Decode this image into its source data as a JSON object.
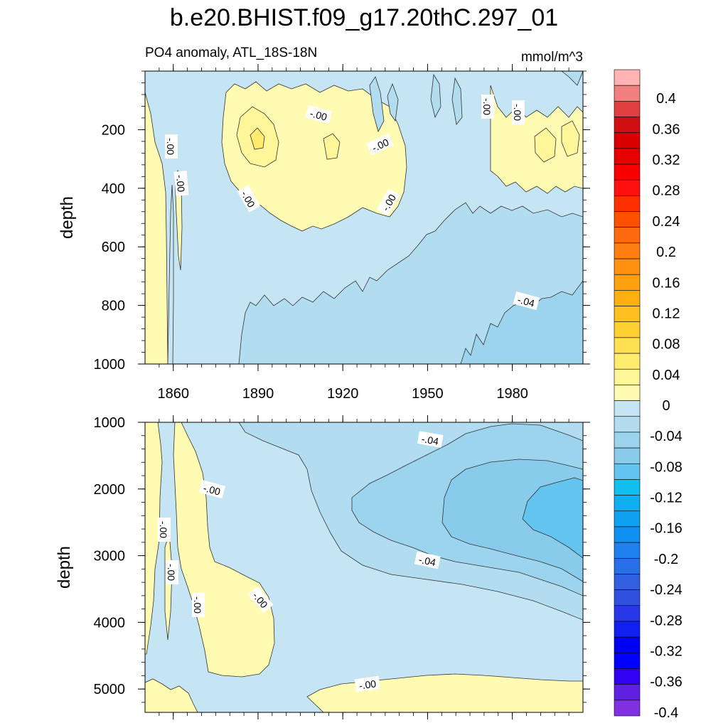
{
  "title": "b.e20.BHIST.f09_g17.20thC.297_01",
  "subtitle_left": "PO4 anomaly, ATL_18S-18N",
  "subtitle_right": "mmol/m^3",
  "colors": {
    "pos1": "#fffbb3",
    "pos2": "#fff599",
    "pos3": "#ffeb6e",
    "neg1": "#c6e5f4",
    "neg2": "#b2dcf0",
    "neg3": "#9dd4ed",
    "neg4": "#88cbeb",
    "neg5": "#63c4ef",
    "line": "#333333"
  },
  "chart_data": [
    {
      "type": "heatmap",
      "panel": "upper",
      "ylabel": "depth",
      "xlim": [
        1850,
        2005
      ],
      "ylim": [
        0,
        1000
      ],
      "y_reversed": true,
      "xticks": [
        1860,
        1890,
        1920,
        1950,
        1980
      ],
      "xtick_labels": [
        "1860",
        "1890",
        "1920",
        "1950",
        "1980"
      ],
      "yticks": [
        200,
        400,
        600,
        800,
        1000
      ],
      "ytick_labels": [
        "200",
        "400",
        "600",
        "800",
        "1000"
      ],
      "contour_labels": [
        "-.00",
        "-.00",
        "-.00",
        "-.00",
        "-.00",
        "-.00",
        "-.00",
        "-.00",
        "-.04"
      ]
    },
    {
      "type": "heatmap",
      "panel": "lower",
      "ylabel": "depth",
      "xlim": [
        1850,
        2005
      ],
      "ylim": [
        1000,
        5350
      ],
      "y_reversed": true,
      "yticks": [
        1000,
        2000,
        3000,
        4000,
        5000
      ],
      "ytick_labels": [
        "1000",
        "2000",
        "3000",
        "4000",
        "5000"
      ],
      "contour_labels": [
        "-.04",
        "-.00",
        "-.00",
        "-.04",
        "-.00",
        "-.00",
        "-.00",
        "-.00"
      ]
    }
  ],
  "colorbar": {
    "tick_labels": [
      "0.4",
      "0.36",
      "0.32",
      "0.28",
      "0.24",
      "0.2",
      "0.16",
      "0.12",
      "0.08",
      "0.04",
      "0",
      "-0.04",
      "-0.08",
      "-0.12",
      "-0.16",
      "-0.2",
      "-0.24",
      "-0.28",
      "-0.32",
      "-0.36",
      "-0.4"
    ],
    "colors": [
      "#ffb3b3",
      "#f08080",
      "#e04040",
      "#d01010",
      "#d80000",
      "#e80000",
      "#f80000",
      "#ff1010",
      "#ff3000",
      "#ff5000",
      "#ff6a10",
      "#ff8010",
      "#ff9010",
      "#ffa010",
      "#ffb010",
      "#ffc020",
      "#ffd030",
      "#ffe050",
      "#ffeb6e",
      "#fff599",
      "#fffbb3",
      "#c6e5f4",
      "#b2dcf0",
      "#9dd4ed",
      "#88cbeb",
      "#63c4ef",
      "#10c0f0",
      "#10b0f0",
      "#10a0f0",
      "#1090f0",
      "#2080f0",
      "#2870e8",
      "#3060e0",
      "#3050e0",
      "#2838e8",
      "#1020f0",
      "#0000f0",
      "#0000ff",
      "#3000f0",
      "#6020e0",
      "#8030e0"
    ]
  }
}
